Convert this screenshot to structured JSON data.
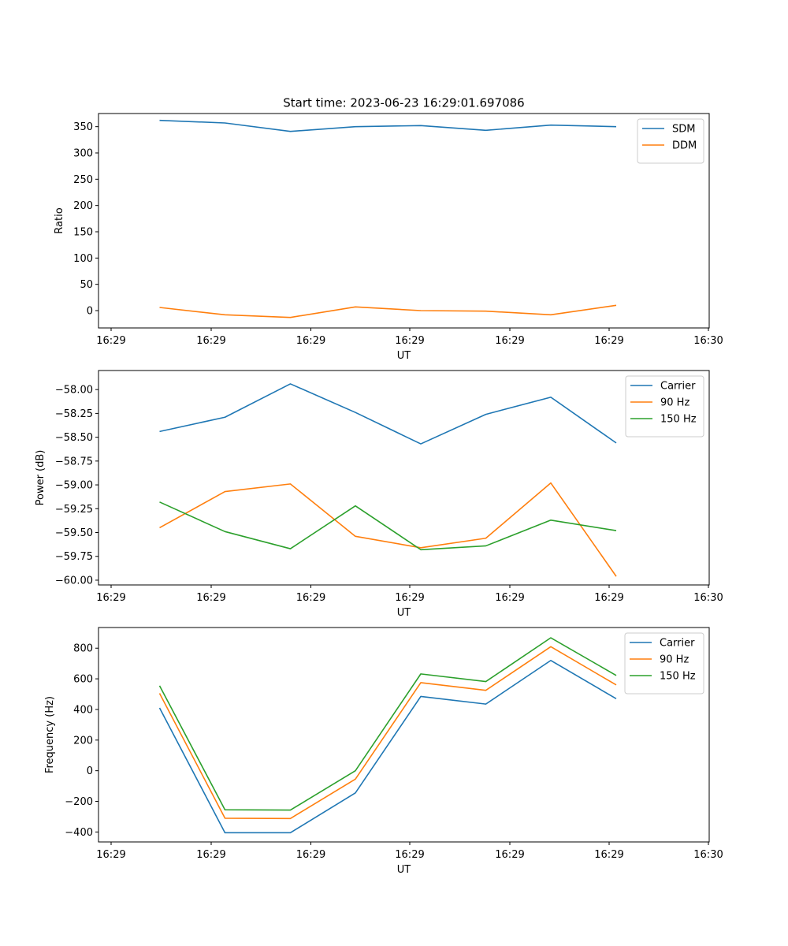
{
  "figure": {
    "title": "Start time: 2023-06-23 16:29:01.697086"
  },
  "colors": {
    "blue": "#1f77b4",
    "orange": "#ff7f0e",
    "green": "#2ca02c",
    "axis": "#000000",
    "legend_border": "#cccccc"
  },
  "chart_data": [
    {
      "type": "line",
      "xlabel": "UT",
      "ylabel": "Ratio",
      "x_ticks": [
        "16:29",
        "16:29",
        "16:29",
        "16:29",
        "16:29",
        "16:29",
        "16:30"
      ],
      "y_ticks": [
        "0",
        "50",
        "100",
        "150",
        "200",
        "250",
        "300",
        "350"
      ],
      "y_tick_values": [
        0,
        50,
        100,
        150,
        200,
        250,
        300,
        350
      ],
      "ylim": [
        -33,
        375
      ],
      "legend_position": "upper right",
      "series": [
        {
          "name": "SDM",
          "color": "#1f77b4",
          "values": [
            362,
            357,
            341,
            350,
            352,
            343,
            353,
            350
          ]
        },
        {
          "name": "DDM",
          "color": "#ff7f0e",
          "values": [
            6,
            -8,
            -13,
            7,
            0,
            -1,
            -8,
            10
          ]
        }
      ]
    },
    {
      "type": "line",
      "xlabel": "UT",
      "ylabel": "Power (dB)",
      "x_ticks": [
        "16:29",
        "16:29",
        "16:29",
        "16:29",
        "16:29",
        "16:29",
        "16:30"
      ],
      "y_ticks": [
        "−58.00",
        "−58.25",
        "−58.50",
        "−58.75",
        "−59.00",
        "−59.25",
        "−59.50",
        "−59.75",
        "−60.00"
      ],
      "y_tick_values": [
        -58.0,
        -58.25,
        -58.5,
        -58.75,
        -59.0,
        -59.25,
        -59.5,
        -59.75,
        -60.0
      ],
      "ylim": [
        -60.05,
        -57.8
      ],
      "legend_position": "upper right",
      "series": [
        {
          "name": "Carrier",
          "color": "#1f77b4",
          "values": [
            -58.44,
            -58.29,
            -57.94,
            -58.24,
            -58.57,
            -58.26,
            -58.08,
            -58.56
          ]
        },
        {
          "name": "90 Hz",
          "color": "#ff7f0e",
          "values": [
            -59.45,
            -59.07,
            -58.99,
            -59.54,
            -59.66,
            -59.56,
            -58.98,
            -59.96
          ]
        },
        {
          "name": "150 Hz",
          "color": "#2ca02c",
          "values": [
            -59.18,
            -59.49,
            -59.67,
            -59.22,
            -59.68,
            -59.64,
            -59.37,
            -59.48
          ]
        }
      ]
    },
    {
      "type": "line",
      "xlabel": "UT",
      "ylabel": "Frequency (Hz)",
      "x_ticks": [
        "16:29",
        "16:29",
        "16:29",
        "16:29",
        "16:29",
        "16:29",
        "16:30"
      ],
      "y_ticks": [
        "−400",
        "−200",
        "0",
        "200",
        "400",
        "600",
        "800"
      ],
      "y_tick_values": [
        -400,
        -200,
        0,
        200,
        400,
        600,
        800
      ],
      "ylim": [
        -465,
        935
      ],
      "legend_position": "upper right",
      "series": [
        {
          "name": "Carrier",
          "color": "#1f77b4",
          "values": [
            410,
            -405,
            -405,
            -145,
            485,
            435,
            720,
            470
          ]
        },
        {
          "name": "90 Hz",
          "color": "#ff7f0e",
          "values": [
            505,
            -310,
            -312,
            -55,
            575,
            525,
            810,
            560
          ]
        },
        {
          "name": "150 Hz",
          "color": "#2ca02c",
          "values": [
            555,
            -255,
            -257,
            0,
            632,
            582,
            868,
            622
          ]
        }
      ]
    }
  ]
}
